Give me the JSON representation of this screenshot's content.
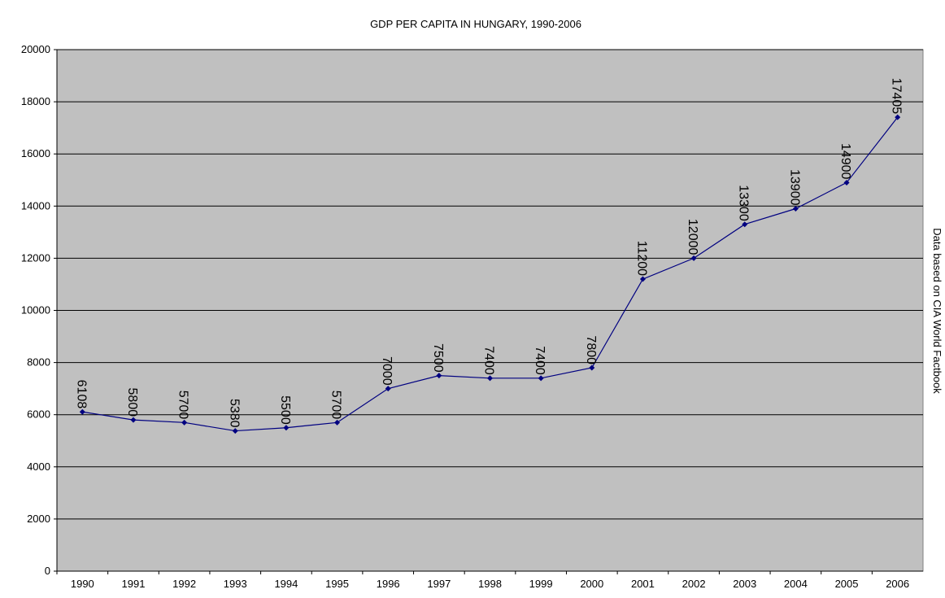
{
  "chart_data": {
    "type": "line",
    "title": "GDP PER CAPITA IN HUNGARY, 1990-2006",
    "annotation": "Data based on CIA World Factbook",
    "categories": [
      "1990",
      "1991",
      "1992",
      "1993",
      "1994",
      "1995",
      "1996",
      "1997",
      "1998",
      "1999",
      "2000",
      "2001",
      "2002",
      "2003",
      "2004",
      "2005",
      "2006"
    ],
    "series": [
      {
        "name": "GDP per capita",
        "color": "#000080",
        "values": [
          6108,
          5800,
          5700,
          5380,
          5500,
          5700,
          7000,
          7500,
          7400,
          7400,
          7800,
          11200,
          12000,
          13300,
          13900,
          14900,
          17405
        ]
      }
    ],
    "ylim": [
      0,
      20000
    ],
    "yticks": [
      0,
      2000,
      4000,
      6000,
      8000,
      10000,
      12000,
      14000,
      16000,
      18000,
      20000
    ],
    "grid": true
  }
}
